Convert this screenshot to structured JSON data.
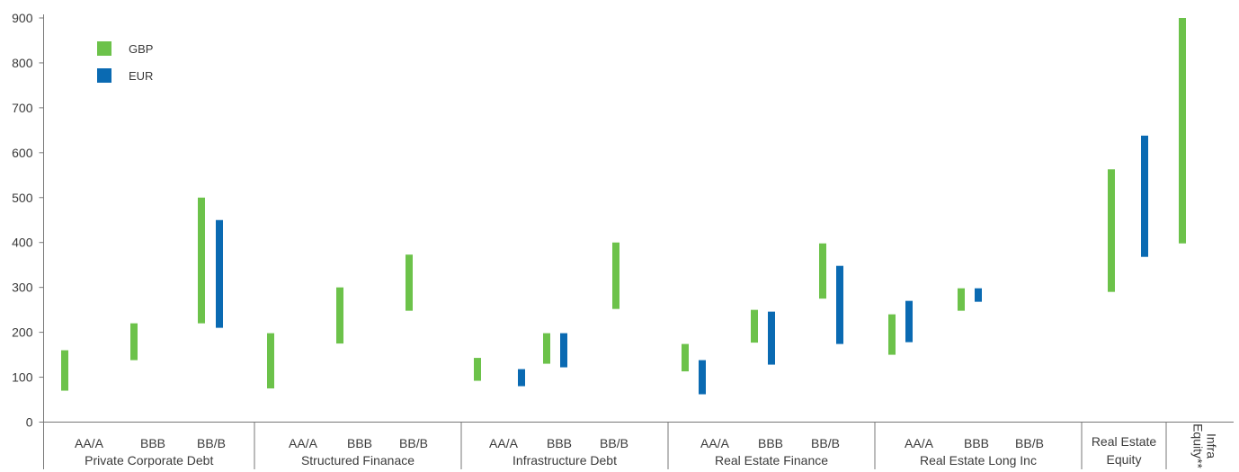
{
  "chart_data": {
    "type": "range-bar",
    "title": "",
    "xlabel": "",
    "ylabel": "",
    "ylim": [
      0,
      900
    ],
    "yticks": [
      0,
      100,
      200,
      300,
      400,
      500,
      600,
      700,
      800,
      900
    ],
    "grid": false,
    "legend_position": "top-left",
    "legend": [
      {
        "name": "GBP",
        "color": "#6cc24a"
      },
      {
        "name": "EUR",
        "color": "#0a6ab2"
      }
    ],
    "groups": [
      {
        "label": "Private Corporate Debt",
        "categories": [
          {
            "label": "AA/A",
            "GBP": [
              70,
              160
            ],
            "EUR": null
          },
          {
            "label": "BBB",
            "GBP": [
              138,
              220
            ],
            "EUR": null
          },
          {
            "label": "BB/B",
            "GBP": [
              220,
              500
            ],
            "EUR": [
              210,
              450
            ]
          }
        ]
      },
      {
        "label": "Structured Finanace",
        "categories": [
          {
            "label": "AA/A",
            "GBP": [
              75,
              198
            ],
            "EUR": null
          },
          {
            "label": "BBB",
            "GBP": [
              175,
              300
            ],
            "EUR": null
          },
          {
            "label": "BB/B",
            "GBP": [
              248,
              373
            ],
            "EUR": null
          }
        ]
      },
      {
        "label": "Infrastructure Debt",
        "categories": [
          {
            "label": "AA/A",
            "GBP": [
              92,
              143
            ],
            "EUR": [
              80,
              118
            ]
          },
          {
            "label": "BBB",
            "GBP": [
              130,
              198
            ],
            "EUR": [
              122,
              198
            ]
          },
          {
            "label": "BB/B",
            "GBP": [
              252,
              400
            ],
            "EUR": null
          }
        ]
      },
      {
        "label": "Real Estate Finance",
        "categories": [
          {
            "label": "AA/A",
            "GBP": [
              113,
              174
            ],
            "EUR": [
              62,
              138
            ]
          },
          {
            "label": "BBB",
            "GBP": [
              177,
              250
            ],
            "EUR": [
              128,
              246
            ]
          },
          {
            "label": "BB/B",
            "GBP": [
              275,
              398
            ],
            "EUR": [
              174,
              348
            ]
          }
        ]
      },
      {
        "label": "Real Estate Long Inc",
        "categories": [
          {
            "label": "AA/A",
            "GBP": [
              150,
              240
            ],
            "EUR": [
              178,
              270
            ]
          },
          {
            "label": "BBB",
            "GBP": [
              248,
              298
            ],
            "EUR": [
              268,
              298
            ]
          },
          {
            "label": "BB/B",
            "GBP": null,
            "EUR": null
          }
        ]
      },
      {
        "label": "Real Estate Equity",
        "categories": [
          {
            "label": "",
            "GBP": [
              290,
              563
            ],
            "EUR": [
              368,
              638
            ]
          }
        ]
      },
      {
        "label": "Infra Equity**",
        "vertical": true,
        "categories": [
          {
            "label": "",
            "GBP": [
              398,
              900
            ],
            "EUR": null
          }
        ]
      }
    ]
  }
}
